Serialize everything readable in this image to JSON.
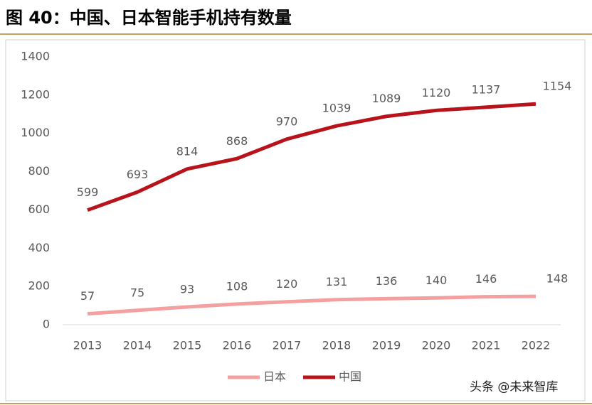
{
  "chart_data": {
    "type": "line",
    "title": "图 40：中国、日本智能手机持有数量",
    "watermark": "头条 @未来智库",
    "categories": [
      "2013",
      "2014",
      "2015",
      "2016",
      "2017",
      "2018",
      "2019",
      "2020",
      "2021",
      "2022"
    ],
    "series": [
      {
        "name": "日本",
        "color": "#f4a0a0",
        "values": [
          57,
          75,
          93,
          108,
          120,
          131,
          136,
          140,
          146,
          148
        ]
      },
      {
        "name": "中国",
        "color": "#b8121b",
        "values": [
          599,
          693,
          814,
          868,
          970,
          1039,
          1089,
          1120,
          1137,
          1154
        ]
      }
    ],
    "ylim": [
      0,
      1400
    ],
    "yticks": [
      0,
      200,
      400,
      600,
      800,
      1000,
      1200,
      1400
    ],
    "grid": false,
    "legend": "bottom"
  }
}
